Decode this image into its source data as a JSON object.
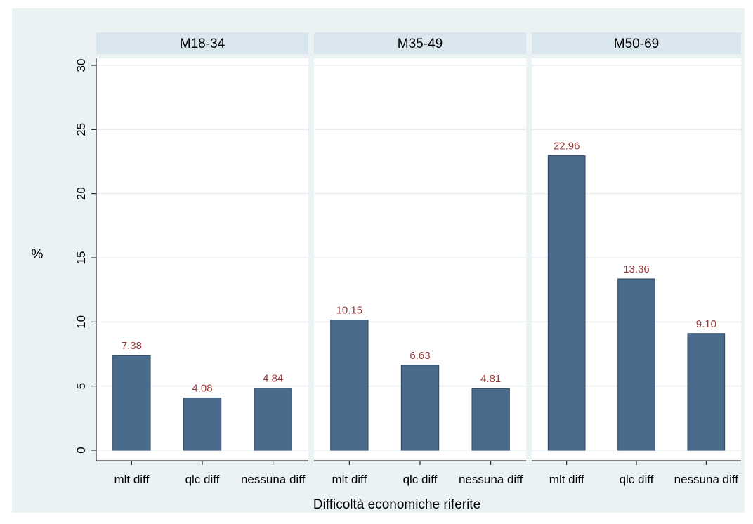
{
  "chart_data": {
    "type": "bar",
    "xlabel": "Difficoltà economiche riferite",
    "ylabel": "%",
    "ylim": [
      0,
      30
    ],
    "yticks": [
      0,
      5,
      10,
      15,
      20,
      25,
      30
    ],
    "grid": true,
    "categories": [
      "mlt diff",
      "qlc diff",
      "nessuna diff"
    ],
    "panels": [
      {
        "title": "M18-34",
        "values": [
          7.38,
          4.08,
          4.84
        ],
        "value_labels": [
          "7.38",
          "4.08",
          "4.84"
        ]
      },
      {
        "title": "M35-49",
        "values": [
          10.15,
          6.63,
          4.81
        ],
        "value_labels": [
          "10.15",
          "6.63",
          "4.81"
        ]
      },
      {
        "title": "M50-69",
        "values": [
          22.96,
          13.36,
          9.1
        ],
        "value_labels": [
          "22.96",
          "13.36",
          "9.10"
        ]
      }
    ],
    "colors": {
      "bar": "#4a6b8c",
      "bar_edge": "#2e4660",
      "value_label": "#9b3a3a",
      "panel_header": "#d9e6ee",
      "background": "#eaf2f3",
      "grid": "#e6eef0"
    }
  }
}
